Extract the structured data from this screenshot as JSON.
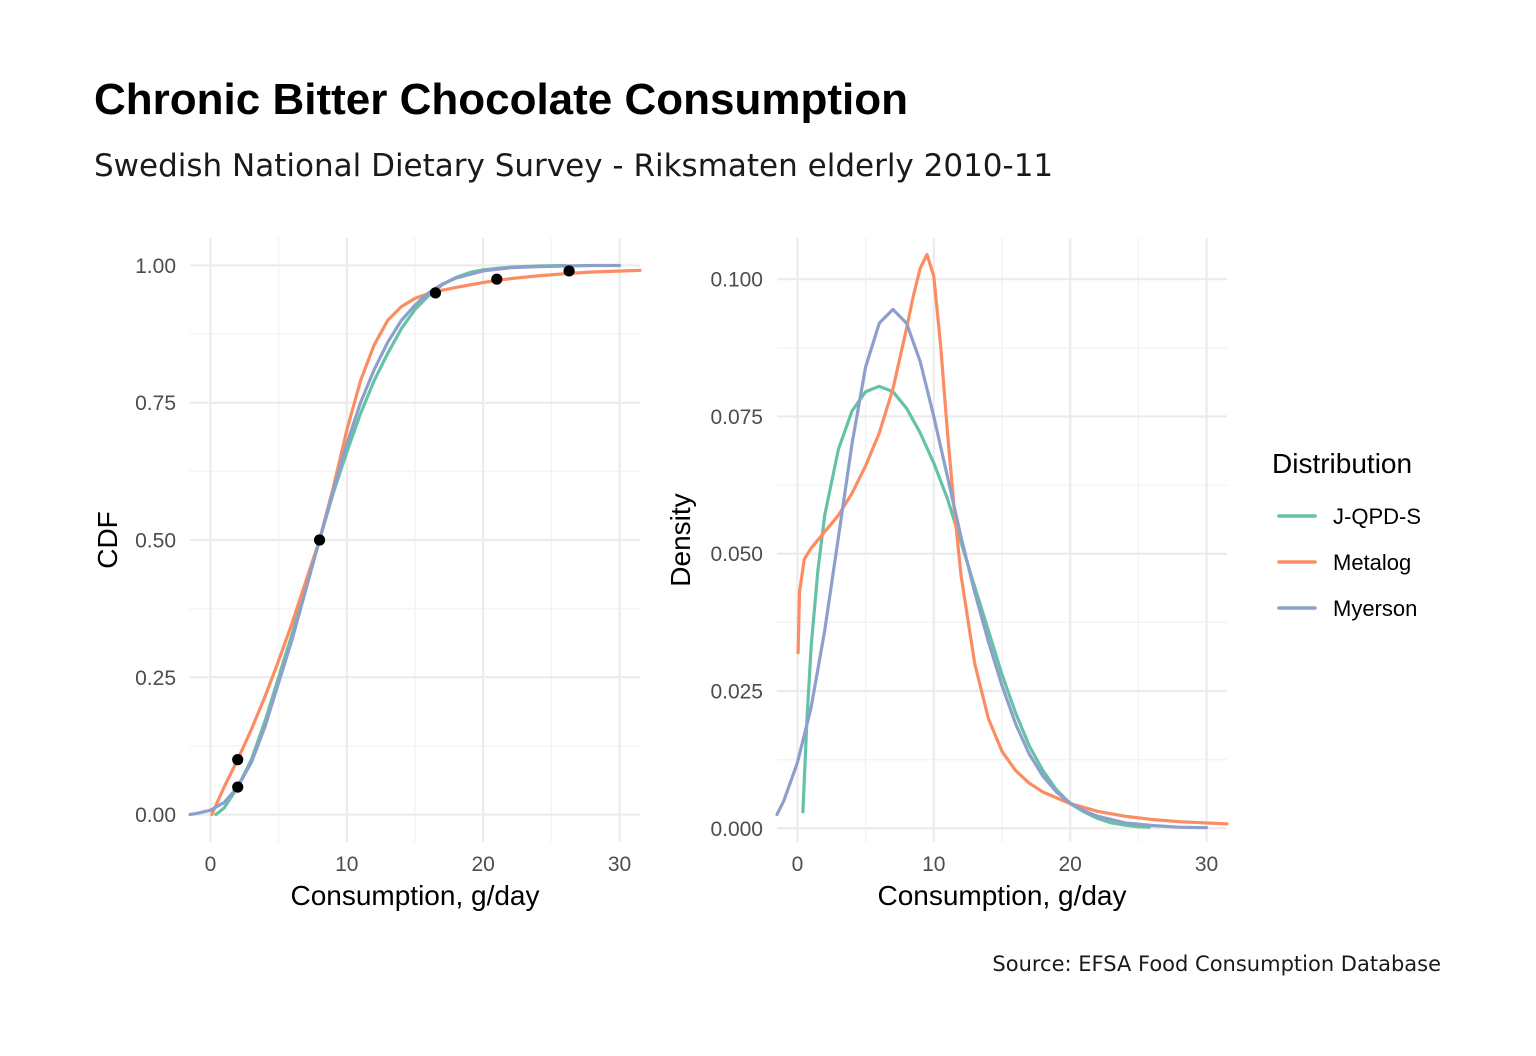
{
  "figure": {
    "title": "Chronic Bitter Chocolate Consumption",
    "subtitle": "Swedish National Dietary Survey - Riksmaten elderly 2010-11",
    "caption": "Source: EFSA Food Consumption Database"
  },
  "legend": {
    "title": "Distribution",
    "placement": "right",
    "entries": [
      {
        "name": "J-QPD-S",
        "color": "#66c2a5"
      },
      {
        "name": "Metalog",
        "color": "#fc8d62"
      },
      {
        "name": "Myerson",
        "color": "#8da0cb"
      }
    ]
  },
  "chart_data": [
    {
      "type": "line",
      "panel": "cdf",
      "xlabel": "Consumption, g/day",
      "ylabel": "CDF",
      "xlim": [
        -1.5,
        31.5
      ],
      "ylim": [
        -0.05,
        1.05
      ],
      "xticks": [
        0,
        10,
        20,
        30
      ],
      "yticks": [
        0,
        0.25,
        0.5,
        0.75,
        1
      ],
      "ytick_labels": [
        "0.00",
        "0.25",
        "0.50",
        "0.75",
        "1.00"
      ],
      "grid": true,
      "series": [
        {
          "name": "J-QPD-S",
          "color": "#66c2a5",
          "x": [
            0.4,
            1,
            2,
            3,
            4,
            5,
            6,
            7,
            8,
            9,
            10,
            11,
            12,
            13,
            14,
            15,
            16,
            17,
            18,
            19,
            20,
            22,
            24,
            26
          ],
          "y": [
            0.0,
            0.012,
            0.05,
            0.1,
            0.17,
            0.25,
            0.33,
            0.415,
            0.5,
            0.585,
            0.66,
            0.73,
            0.79,
            0.84,
            0.885,
            0.92,
            0.945,
            0.965,
            0.978,
            0.987,
            0.992,
            0.997,
            0.999,
            1.0
          ]
        },
        {
          "name": "Metalog",
          "color": "#fc8d62",
          "x": [
            0.1,
            1,
            2,
            3,
            4,
            5,
            6,
            7,
            8,
            9,
            10,
            11,
            12,
            13,
            14,
            15,
            16,
            17,
            18,
            20,
            22,
            24,
            26,
            28,
            31.5
          ],
          "y": [
            0.0,
            0.05,
            0.1,
            0.155,
            0.215,
            0.28,
            0.35,
            0.425,
            0.5,
            0.595,
            0.7,
            0.79,
            0.855,
            0.9,
            0.925,
            0.94,
            0.949,
            0.955,
            0.96,
            0.969,
            0.976,
            0.981,
            0.985,
            0.988,
            0.991
          ]
        },
        {
          "name": "Myerson",
          "color": "#8da0cb",
          "x": [
            -1.5,
            -1,
            0,
            1,
            2,
            3,
            4,
            5,
            6,
            7,
            8,
            9,
            10,
            11,
            12,
            13,
            14,
            15,
            16,
            17,
            18,
            20,
            22,
            24,
            26,
            28,
            30
          ],
          "y": [
            0.0,
            0.002,
            0.008,
            0.022,
            0.05,
            0.095,
            0.16,
            0.24,
            0.32,
            0.41,
            0.5,
            0.59,
            0.675,
            0.75,
            0.81,
            0.86,
            0.9,
            0.928,
            0.95,
            0.966,
            0.977,
            0.99,
            0.996,
            0.998,
            0.999,
            1.0,
            1.0
          ]
        }
      ],
      "points": {
        "color": "#000000",
        "x": [
          2,
          2,
          8,
          16.5,
          21,
          26.3
        ],
        "y": [
          0.05,
          0.1,
          0.5,
          0.95,
          0.975,
          0.99
        ]
      }
    },
    {
      "type": "line",
      "panel": "density",
      "xlabel": "Consumption, g/day",
      "ylabel": "Density",
      "xlim": [
        -1.5,
        31.5
      ],
      "ylim": [
        -0.0025,
        0.1075
      ],
      "xticks": [
        0,
        10,
        20,
        30
      ],
      "yticks": [
        0,
        0.025,
        0.05,
        0.075,
        0.1
      ],
      "ytick_labels": [
        "0.000",
        "0.025",
        "0.050",
        "0.075",
        "0.100"
      ],
      "grid": true,
      "series": [
        {
          "name": "J-QPD-S",
          "color": "#66c2a5",
          "x": [
            0.4,
            0.7,
            1,
            1.5,
            2,
            3,
            4,
            5,
            6,
            7,
            8,
            9,
            10,
            11,
            12,
            13,
            14,
            15,
            16,
            17,
            18,
            19,
            20,
            21,
            22,
            23,
            24,
            25,
            25.8
          ],
          "y": [
            0.003,
            0.02,
            0.033,
            0.047,
            0.057,
            0.069,
            0.076,
            0.0795,
            0.0805,
            0.0795,
            0.0765,
            0.072,
            0.0665,
            0.06,
            0.052,
            0.044,
            0.036,
            0.028,
            0.021,
            0.015,
            0.0105,
            0.007,
            0.0045,
            0.003,
            0.0018,
            0.001,
            0.0006,
            0.0003,
            0.0002
          ]
        },
        {
          "name": "Metalog",
          "color": "#fc8d62",
          "x": [
            0.05,
            0.15,
            0.5,
            1,
            2,
            3,
            4,
            5,
            6,
            7,
            8,
            8.5,
            9,
            9.5,
            10,
            10.5,
            11,
            11.5,
            12,
            13,
            14,
            15,
            16,
            17,
            18,
            20,
            22,
            24,
            26,
            28,
            31.5
          ],
          "y": [
            0.032,
            0.043,
            0.049,
            0.051,
            0.054,
            0.057,
            0.061,
            0.066,
            0.072,
            0.08,
            0.091,
            0.097,
            0.102,
            0.1045,
            0.1005,
            0.088,
            0.072,
            0.058,
            0.046,
            0.03,
            0.02,
            0.014,
            0.0105,
            0.0082,
            0.0066,
            0.0045,
            0.0031,
            0.0022,
            0.0016,
            0.0012,
            0.0008
          ]
        },
        {
          "name": "Myerson",
          "color": "#8da0cb",
          "x": [
            -1.5,
            -1,
            0,
            1,
            2,
            3,
            4,
            5,
            6,
            7,
            8,
            9,
            10,
            11,
            12,
            13,
            14,
            15,
            16,
            17,
            18,
            19,
            20,
            21,
            22,
            24,
            26,
            28,
            30
          ],
          "y": [
            0.0025,
            0.005,
            0.012,
            0.022,
            0.036,
            0.053,
            0.07,
            0.084,
            0.092,
            0.0945,
            0.092,
            0.085,
            0.075,
            0.064,
            0.053,
            0.043,
            0.034,
            0.026,
            0.019,
            0.0135,
            0.0095,
            0.0066,
            0.0046,
            0.0032,
            0.0022,
            0.001,
            0.0005,
            0.0002,
            0.0001
          ]
        }
      ]
    }
  ]
}
